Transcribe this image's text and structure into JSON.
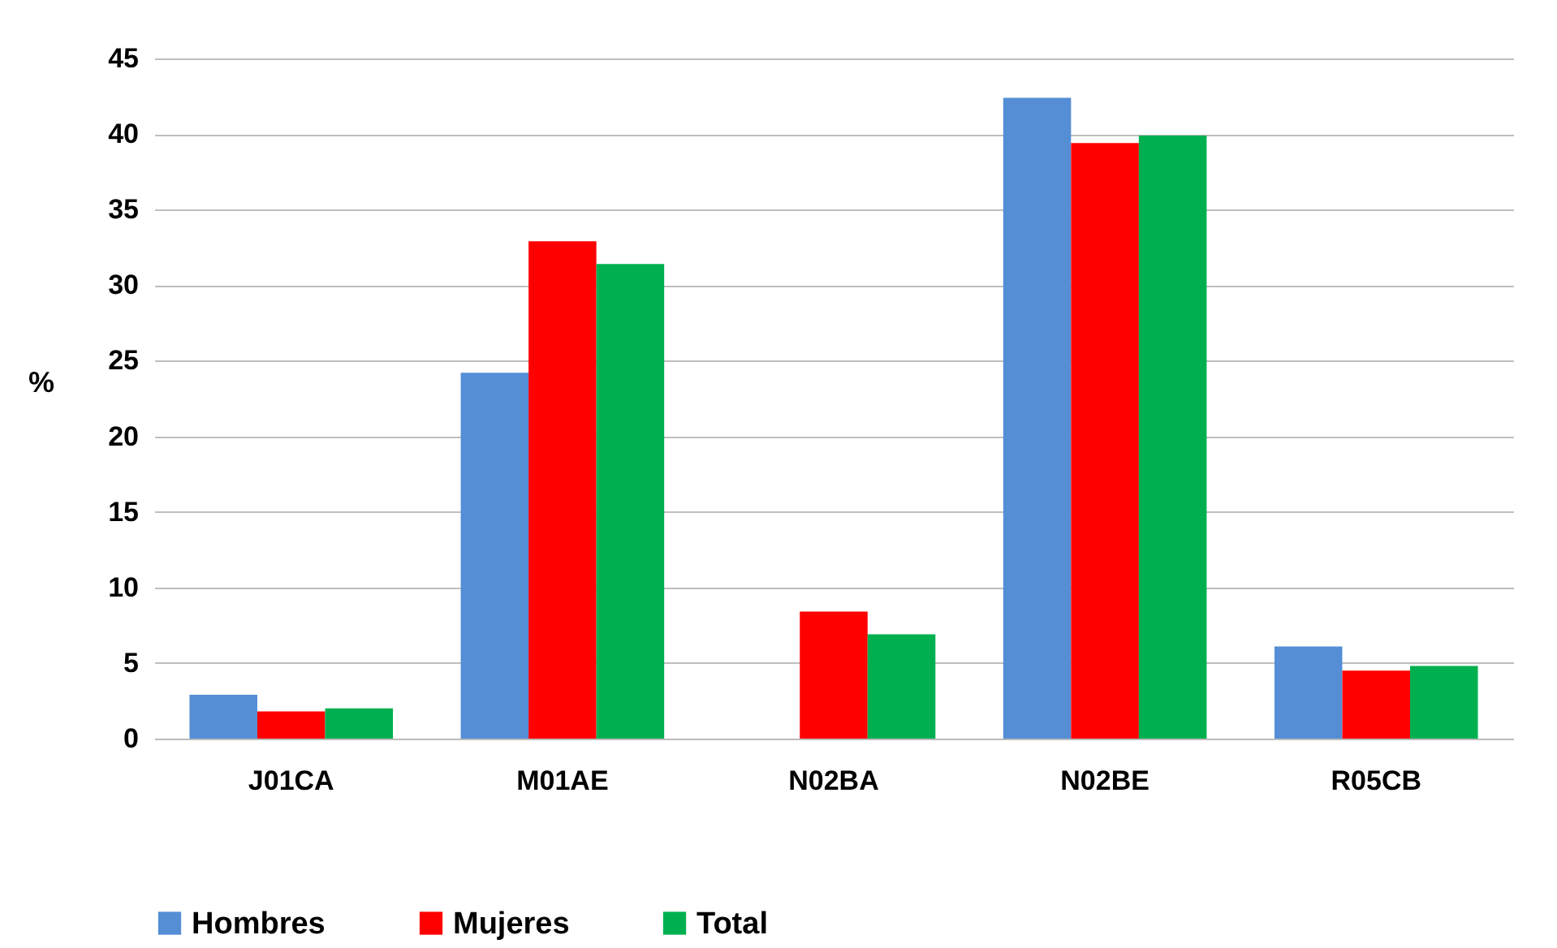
{
  "chart_data": {
    "type": "bar",
    "ylabel": "%",
    "categories": [
      "J01CA",
      "M01AE",
      "N02BA",
      "N02BE",
      "R05CB"
    ],
    "series": [
      {
        "name": "Hombres",
        "color": "#558ed5",
        "values": [
          2.9,
          24.2,
          0,
          42.4,
          6.1
        ]
      },
      {
        "name": "Mujeres",
        "color": "#ff0000",
        "values": [
          1.8,
          32.9,
          8.4,
          39.4,
          4.5
        ]
      },
      {
        "name": "Total",
        "color": "#00b050",
        "values": [
          2.0,
          31.4,
          6.9,
          39.9,
          4.8
        ]
      }
    ],
    "ylim": [
      0,
      45
    ],
    "yticks": [
      0,
      5,
      10,
      15,
      20,
      25,
      30,
      35,
      40,
      45
    ],
    "grid": "y",
    "legend": "bottom"
  }
}
